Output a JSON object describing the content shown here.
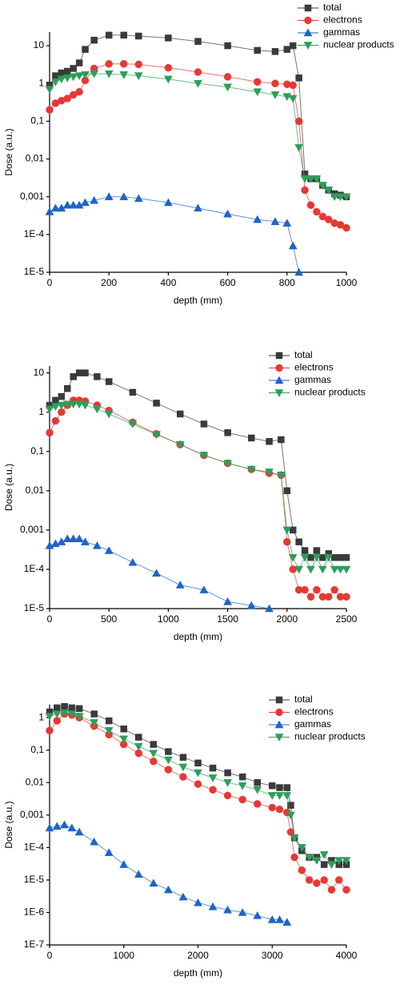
{
  "chart_data": [
    {
      "type": "line",
      "xlabel": "depth (mm)",
      "ylabel": "Dose (a.u.)",
      "log_y": true,
      "legend": "upper right",
      "x": [
        0,
        20,
        40,
        60,
        80,
        100,
        120,
        150,
        200,
        250,
        300,
        400,
        500,
        600,
        700,
        760,
        800,
        820,
        840,
        860,
        880,
        900,
        920,
        940,
        960,
        980,
        1000
      ],
      "series": [
        {
          "name": "total",
          "color": "#3a3a3a",
          "marker": "square",
          "values": [
            0.9,
            1.6,
            1.9,
            2.1,
            2.5,
            3.5,
            8,
            14,
            19,
            19,
            18,
            16,
            13,
            10,
            7.5,
            7,
            8,
            10,
            1.4,
            0.004,
            0.003,
            0.003,
            0.002,
            0.0015,
            0.0012,
            0.0011,
            0.001
          ]
        },
        {
          "name": "electrons",
          "color": "#e53935",
          "marker": "circle",
          "values": [
            0.2,
            0.3,
            0.35,
            0.4,
            0.5,
            0.6,
            1.2,
            2.5,
            3.3,
            3.3,
            3.2,
            2.6,
            2.0,
            1.5,
            1.1,
            1.0,
            0.95,
            0.9,
            0.1,
            0.0015,
            0.0006,
            0.0004,
            0.0003,
            0.00025,
            0.0002,
            0.00018,
            0.00015
          ]
        },
        {
          "name": "gammas",
          "color": "#1e64c8",
          "marker": "triangle-up",
          "values": [
            0.0004,
            0.0005,
            0.0005,
            0.0006,
            0.0006,
            0.0006,
            0.0007,
            0.0008,
            0.001,
            0.001,
            0.0009,
            0.0007,
            0.0005,
            0.00035,
            0.00025,
            0.00022,
            0.0002,
            5e-05,
            1e-05,
            null,
            null,
            null,
            null,
            null,
            null,
            null,
            null
          ]
        },
        {
          "name": "nuclear products",
          "color": "#2e9e5a",
          "marker": "triangle-down",
          "values": [
            0.7,
            1.1,
            1.3,
            1.4,
            1.5,
            1.6,
            1.7,
            1.8,
            1.8,
            1.7,
            1.6,
            1.3,
            1.0,
            0.8,
            0.6,
            0.5,
            0.45,
            0.4,
            0.02,
            0.003,
            0.003,
            0.003,
            0.002,
            0.0015,
            0.001,
            0.001,
            0.001
          ]
        }
      ],
      "xlim": [
        0,
        1000
      ],
      "xticks": [
        0,
        200,
        400,
        600,
        800,
        1000
      ],
      "ylim": [
        1e-05,
        23
      ],
      "yticks": [
        {
          "value": 1e-05,
          "label": "1E-5"
        },
        {
          "value": 0.0001,
          "label": "1E-4"
        },
        {
          "value": 0.001,
          "label": "0,001"
        },
        {
          "value": 0.01,
          "label": "0,01"
        },
        {
          "value": 0.1,
          "label": "0,1"
        },
        1,
        10
      ]
    },
    {
      "type": "line",
      "xlabel": "depth (mm)",
      "ylabel": "Dose (a.u.)",
      "log_y": true,
      "legend": "upper right",
      "x": [
        0,
        50,
        100,
        150,
        200,
        250,
        300,
        400,
        500,
        700,
        900,
        1100,
        1300,
        1500,
        1700,
        1850,
        1950,
        2000,
        2050,
        2100,
        2150,
        2200,
        2250,
        2300,
        2350,
        2400,
        2450,
        2500
      ],
      "series": [
        {
          "name": "total",
          "color": "#3a3a3a",
          "marker": "square",
          "values": [
            1.5,
            2,
            2.5,
            4,
            8,
            10,
            10,
            8,
            6,
            3.2,
            1.7,
            0.9,
            0.5,
            0.3,
            0.22,
            0.18,
            0.2,
            0.01,
            0.001,
            0.0005,
            0.0003,
            0.0002,
            0.0003,
            0.0002,
            0.00025,
            0.0002,
            0.0002,
            0.0002
          ]
        },
        {
          "name": "electrons",
          "color": "#e53935",
          "marker": "circle",
          "values": [
            0.3,
            0.6,
            1,
            1.5,
            2,
            2,
            1.9,
            1.5,
            1.1,
            0.55,
            0.28,
            0.15,
            0.08,
            0.05,
            0.035,
            0.028,
            0.025,
            0.0005,
            0.0001,
            3e-05,
            3e-05,
            2e-05,
            3e-05,
            2e-05,
            2e-05,
            3e-05,
            2e-05,
            2e-05
          ]
        },
        {
          "name": "gammas",
          "color": "#1e64c8",
          "marker": "triangle-up",
          "values": [
            0.0004,
            0.00045,
            0.0005,
            0.0006,
            0.0006,
            0.0006,
            0.0005,
            0.0004,
            0.0003,
            0.00015,
            8e-05,
            4e-05,
            3e-05,
            1.5e-05,
            1.2e-05,
            1e-05,
            null,
            null,
            null,
            null,
            null,
            null,
            null,
            null,
            null,
            null,
            null,
            null
          ]
        },
        {
          "name": "nuclear products",
          "color": "#2e9e5a",
          "marker": "triangle-down",
          "values": [
            1.2,
            1.4,
            1.5,
            1.6,
            1.6,
            1.6,
            1.5,
            1.2,
            0.9,
            0.5,
            0.27,
            0.15,
            0.08,
            0.05,
            0.035,
            0.03,
            0.025,
            0.001,
            0.0002,
            0.0001,
            0.0002,
            0.0001,
            0.0002,
            0.0001,
            0.0002,
            0.0001,
            0.0001,
            0.0001
          ]
        }
      ],
      "xlim": [
        0,
        2500
      ],
      "xticks": [
        0,
        500,
        1000,
        1500,
        2000,
        2500
      ],
      "ylim": [
        1e-05,
        15
      ],
      "yticks": [
        {
          "value": 1e-05,
          "label": "1E-5"
        },
        {
          "value": 0.0001,
          "label": "1E-4"
        },
        {
          "value": 0.001,
          "label": "0,001"
        },
        {
          "value": 0.01,
          "label": "0,01"
        },
        {
          "value": 0.1,
          "label": "0,1"
        },
        1,
        10
      ]
    },
    {
      "type": "line",
      "xlabel": "depth (mm)",
      "ylabel": "Dose (a.u.)",
      "log_y": true,
      "legend": "upper right",
      "x": [
        0,
        100,
        200,
        300,
        400,
        600,
        800,
        1000,
        1200,
        1400,
        1600,
        1800,
        2000,
        2200,
        2400,
        2600,
        2800,
        3000,
        3100,
        3200,
        3250,
        3300,
        3400,
        3500,
        3600,
        3700,
        3800,
        3900,
        4000
      ],
      "series": [
        {
          "name": "total",
          "color": "#3a3a3a",
          "marker": "square",
          "values": [
            1.5,
            2,
            2.2,
            2,
            1.9,
            1.3,
            0.8,
            0.45,
            0.25,
            0.15,
            0.09,
            0.06,
            0.04,
            0.028,
            0.02,
            0.015,
            0.01,
            0.008,
            0.007,
            0.007,
            0.002,
            0.0002,
            8e-05,
            5e-05,
            5e-05,
            3e-05,
            4e-05,
            3e-05,
            3e-05
          ]
        },
        {
          "name": "electrons",
          "color": "#e53935",
          "marker": "circle",
          "values": [
            0.4,
            0.8,
            1.3,
            1.2,
            1.0,
            0.55,
            0.3,
            0.15,
            0.08,
            0.045,
            0.025,
            0.015,
            0.009,
            0.006,
            0.004,
            0.003,
            0.0022,
            0.0017,
            0.0015,
            0.0012,
            0.0003,
            5e-05,
            2e-05,
            1e-05,
            8e-06,
            1e-05,
            5e-06,
            1e-05,
            5e-06
          ]
        },
        {
          "name": "gammas",
          "color": "#1e64c8",
          "marker": "triangle-up",
          "values": [
            0.0004,
            0.00045,
            0.0005,
            0.0004,
            0.0003,
            0.00015,
            7e-05,
            3e-05,
            1.5e-05,
            8e-06,
            5e-06,
            3e-06,
            2e-06,
            1.5e-06,
            1.2e-06,
            1e-06,
            8e-07,
            6e-07,
            6e-07,
            5e-07,
            null,
            null,
            null,
            null,
            null,
            null,
            null,
            null,
            null
          ]
        },
        {
          "name": "nuclear products",
          "color": "#2e9e5a",
          "marker": "triangle-down",
          "values": [
            1.1,
            1.3,
            1.4,
            1.3,
            1.1,
            0.7,
            0.4,
            0.22,
            0.13,
            0.08,
            0.05,
            0.03,
            0.02,
            0.014,
            0.01,
            0.008,
            0.006,
            0.004,
            0.004,
            0.004,
            0.001,
            0.0002,
            0.0001,
            5e-05,
            4e-05,
            6e-05,
            3e-05,
            4e-05,
            4e-05
          ]
        }
      ],
      "xlim": [
        0,
        4000
      ],
      "xticks": [
        0,
        1000,
        2000,
        3000,
        4000
      ],
      "ylim": [
        1e-07,
        2.5
      ],
      "yticks": [
        {
          "value": 1e-07,
          "label": "1E-7"
        },
        {
          "value": 1e-06,
          "label": "1E-6"
        },
        {
          "value": 1e-05,
          "label": "1E-5"
        },
        {
          "value": 0.0001,
          "label": "1E-4"
        },
        {
          "value": 0.001,
          "label": "0,001"
        },
        {
          "value": 0.01,
          "label": "0,01"
        },
        {
          "value": 0.1,
          "label": "0,1"
        },
        1
      ]
    }
  ]
}
